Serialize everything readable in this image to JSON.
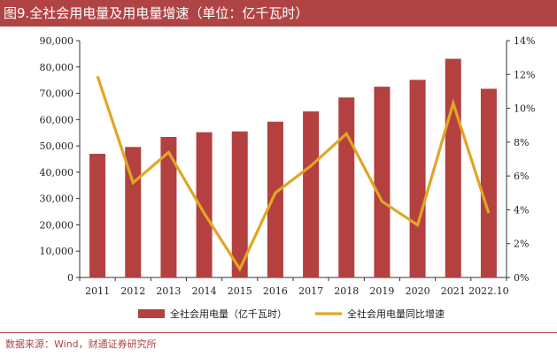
{
  "title": "图9.全社会用电量及用电量增速（单位：亿千瓦时）",
  "source": "数据来源：Wind，财通证券研究所",
  "colors": {
    "bar": "#b4403f",
    "line": "#e0a624",
    "title_bg": "#b04445",
    "axis": "#333333"
  },
  "chart_data": {
    "type": "bar",
    "categories": [
      "2011",
      "2012",
      "2013",
      "2014",
      "2015",
      "2016",
      "2017",
      "2018",
      "2019",
      "2020",
      "2021",
      "2022.10"
    ],
    "series": [
      {
        "name": "全社会用电量（亿千瓦时）",
        "type": "bar",
        "axis": "left",
        "values": [
          47000,
          49600,
          53400,
          55200,
          55500,
          59200,
          63100,
          68400,
          72500,
          75100,
          83100,
          71700
        ]
      },
      {
        "name": "全社会用电量同比增速",
        "type": "line",
        "axis": "right",
        "unit": "%",
        "values": [
          11.9,
          5.6,
          7.4,
          3.8,
          0.5,
          5.0,
          6.6,
          8.5,
          4.5,
          3.1,
          10.3,
          3.8
        ]
      }
    ],
    "y_left": {
      "min": 0,
      "max": 90000,
      "step": 10000,
      "ticks": [
        "0",
        "10,000",
        "20,000",
        "30,000",
        "40,000",
        "50,000",
        "60,000",
        "70,000",
        "80,000",
        "90,000"
      ]
    },
    "y_right": {
      "min": 0,
      "max": 14,
      "step": 2,
      "ticks": [
        "0%",
        "2%",
        "4%",
        "6%",
        "8%",
        "10%",
        "12%",
        "14%"
      ]
    },
    "grid": false,
    "legend_position": "bottom"
  }
}
